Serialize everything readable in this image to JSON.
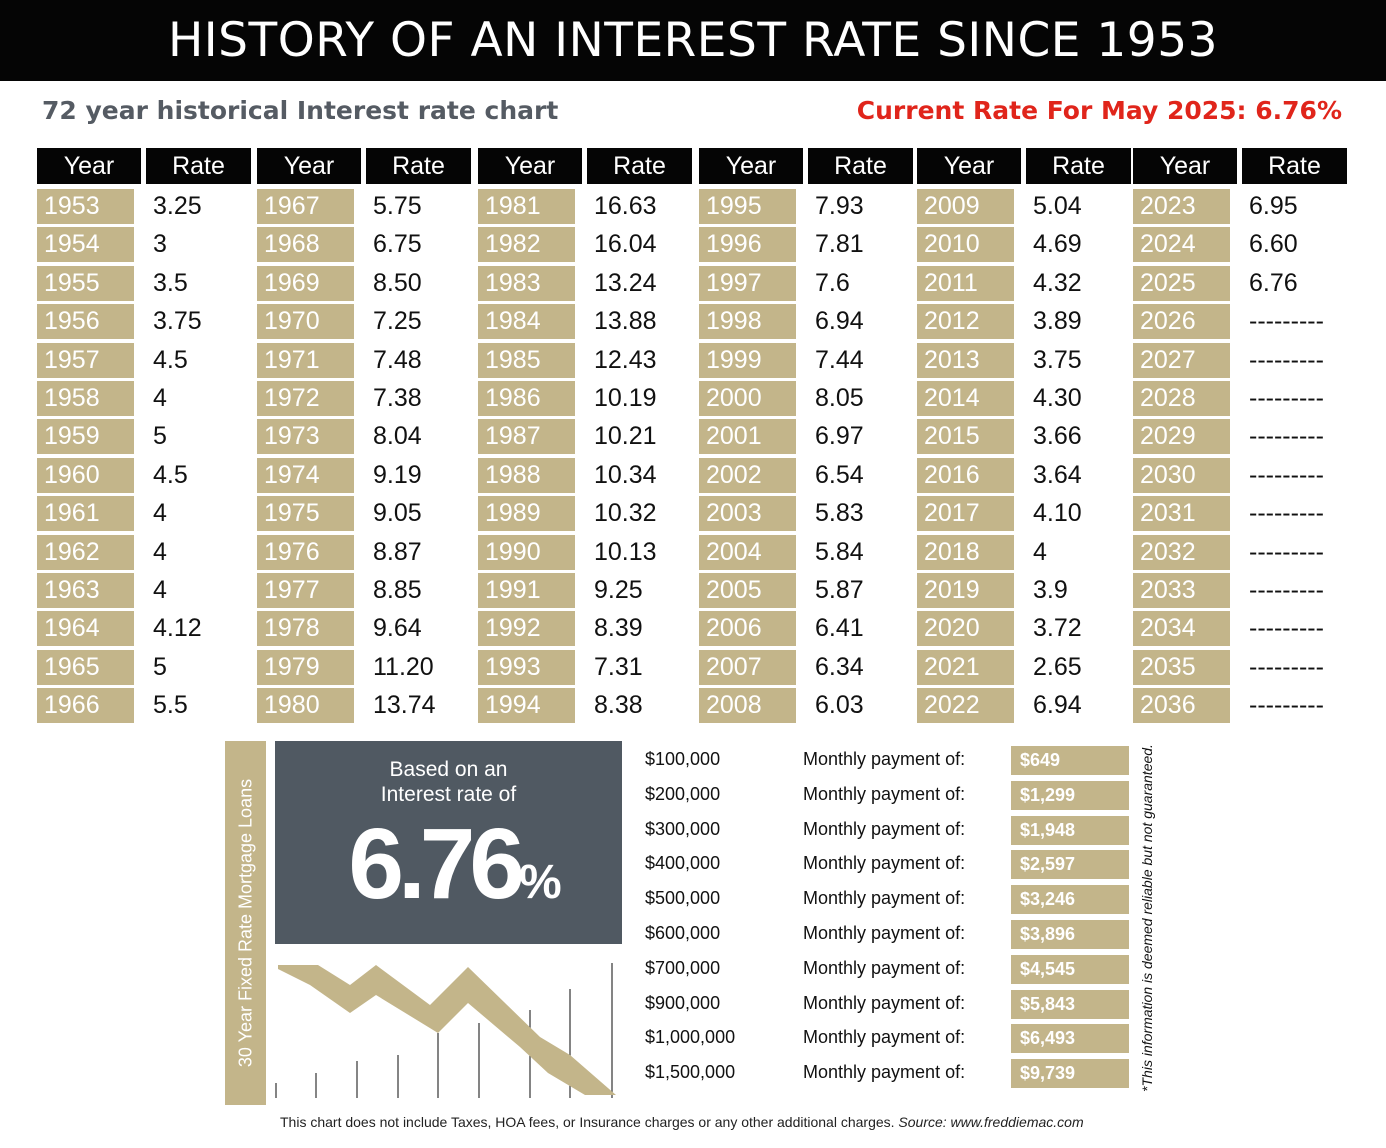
{
  "header": {
    "title": "HISTORY OF AN INTEREST RATE SINCE 1953",
    "subtitle": "72 year historical Interest rate chart",
    "current_rate": "Current Rate For May 2025: 6.76%"
  },
  "table": {
    "year_header": "Year",
    "rate_header": "Rate",
    "columns": [
      [
        [
          "1953",
          "3.25"
        ],
        [
          "1954",
          "3"
        ],
        [
          "1955",
          "3.5"
        ],
        [
          "1956",
          "3.75"
        ],
        [
          "1957",
          "4.5"
        ],
        [
          "1958",
          "4"
        ],
        [
          "1959",
          "5"
        ],
        [
          "1960",
          "4.5"
        ],
        [
          "1961",
          "4"
        ],
        [
          "1962",
          "4"
        ],
        [
          "1963",
          "4"
        ],
        [
          "1964",
          "4.12"
        ],
        [
          "1965",
          "5"
        ],
        [
          "1966",
          "5.5"
        ]
      ],
      [
        [
          "1967",
          "5.75"
        ],
        [
          "1968",
          "6.75"
        ],
        [
          "1969",
          "8.50"
        ],
        [
          "1970",
          "7.25"
        ],
        [
          "1971",
          "7.48"
        ],
        [
          "1972",
          "7.38"
        ],
        [
          "1973",
          "8.04"
        ],
        [
          "1974",
          "9.19"
        ],
        [
          "1975",
          "9.05"
        ],
        [
          "1976",
          "8.87"
        ],
        [
          "1977",
          "8.85"
        ],
        [
          "1978",
          "9.64"
        ],
        [
          "1979",
          "11.20"
        ],
        [
          "1980",
          "13.74"
        ]
      ],
      [
        [
          "1981",
          "16.63"
        ],
        [
          "1982",
          "16.04"
        ],
        [
          "1983",
          "13.24"
        ],
        [
          "1984",
          "13.88"
        ],
        [
          "1985",
          "12.43"
        ],
        [
          "1986",
          "10.19"
        ],
        [
          "1987",
          "10.21"
        ],
        [
          "1988",
          "10.34"
        ],
        [
          "1989",
          "10.32"
        ],
        [
          "1990",
          "10.13"
        ],
        [
          "1991",
          "9.25"
        ],
        [
          "1992",
          "8.39"
        ],
        [
          "1993",
          "7.31"
        ],
        [
          "1994",
          "8.38"
        ]
      ],
      [
        [
          "1995",
          "7.93"
        ],
        [
          "1996",
          "7.81"
        ],
        [
          "1997",
          "7.6"
        ],
        [
          "1998",
          "6.94"
        ],
        [
          "1999",
          "7.44"
        ],
        [
          "2000",
          "8.05"
        ],
        [
          "2001",
          "6.97"
        ],
        [
          "2002",
          "6.54"
        ],
        [
          "2003",
          "5.83"
        ],
        [
          "2004",
          "5.84"
        ],
        [
          "2005",
          "5.87"
        ],
        [
          "2006",
          "6.41"
        ],
        [
          "2007",
          "6.34"
        ],
        [
          "2008",
          "6.03"
        ]
      ],
      [
        [
          "2009",
          "5.04"
        ],
        [
          "2010",
          "4.69"
        ],
        [
          "2011",
          "4.32"
        ],
        [
          "2012",
          "3.89"
        ],
        [
          "2013",
          "3.75"
        ],
        [
          "2014",
          "4.30"
        ],
        [
          "2015",
          "3.66"
        ],
        [
          "2016",
          "3.64"
        ],
        [
          "2017",
          "4.10"
        ],
        [
          "2018",
          "4"
        ],
        [
          "2019",
          "3.9"
        ],
        [
          "2020",
          "3.72"
        ],
        [
          "2021",
          "2.65"
        ],
        [
          "2022",
          "6.94"
        ]
      ],
      [
        [
          "2023",
          "6.95"
        ],
        [
          "2024",
          "6.60"
        ],
        [
          "2025",
          "6.76"
        ],
        [
          "2026",
          "---------"
        ],
        [
          "2027",
          "---------"
        ],
        [
          "2028",
          "---------"
        ],
        [
          "2029",
          "---------"
        ],
        [
          "2030",
          "---------"
        ],
        [
          "2031",
          "---------"
        ],
        [
          "2032",
          "---------"
        ],
        [
          "2033",
          "---------"
        ],
        [
          "2034",
          "---------"
        ],
        [
          "2035",
          "---------"
        ],
        [
          "2036",
          "---------"
        ]
      ]
    ]
  },
  "side_label": "30 Year Fixed Rate Mortgage Loans",
  "rate_box": {
    "line1": "Based on an",
    "line2": "Interest rate of",
    "value": "6.76",
    "percent": "%"
  },
  "payments": {
    "label": "Monthly payment of:",
    "rows": [
      {
        "amount": "$100,000",
        "payment": "$649"
      },
      {
        "amount": "$200,000",
        "payment": "$1,299"
      },
      {
        "amount": "$300,000",
        "payment": "$1,948"
      },
      {
        "amount": "$400,000",
        "payment": "$2,597"
      },
      {
        "amount": "$500,000",
        "payment": "$3,246"
      },
      {
        "amount": "$600,000",
        "payment": "$3,896"
      },
      {
        "amount": "$700,000",
        "payment": "$4,545"
      },
      {
        "amount": "$900,000",
        "payment": "$5,843"
      },
      {
        "amount": "$1,000,000",
        "payment": "$6,493"
      },
      {
        "amount": "$1,500,000",
        "payment": "$9,739"
      }
    ]
  },
  "disclaimer": "*This information is deemed reliable but not guaranteed.",
  "footnote": {
    "text": "This chart does not include Taxes, HOA fees, or Insurance charges or any other additional charges.",
    "source": "Source: www.freddiemac.com"
  },
  "colors": {
    "gold": "#c3b58a",
    "black": "#050505",
    "slate": "#505962",
    "red": "#e0251b"
  },
  "icons": [
    "trend-down-arrow-icon"
  ]
}
